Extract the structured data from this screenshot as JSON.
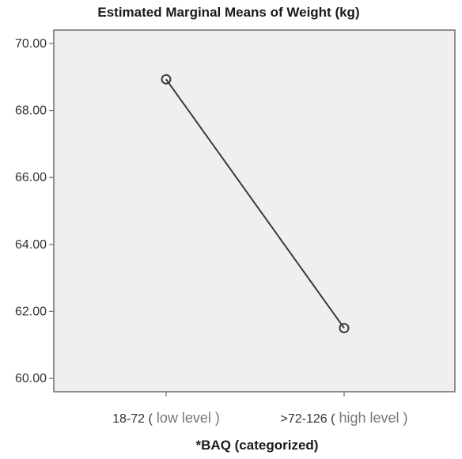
{
  "chart_data": {
    "type": "line",
    "title": "Estimated Marginal Means of Weight (kg)",
    "xlabel": "*BAQ (categorized)",
    "ylabel": "",
    "categories": [
      {
        "main": "18-72 (",
        "paren": " low level   )"
      },
      {
        "main": ">72-126 (",
        "paren": " high level   )"
      }
    ],
    "values": [
      68.93,
      61.5
    ],
    "ylim": [
      59.6,
      70.4
    ],
    "yticks": [
      "60.00",
      "62.00",
      "64.00",
      "66.00",
      "68.00",
      "70.00"
    ],
    "ytick_values": [
      60,
      62,
      64,
      66,
      68,
      70
    ],
    "grid": false,
    "legend": "none",
    "colors": {
      "plot_background": "#efefef",
      "line": "#3a3a3a",
      "marker": "#3a3a3a",
      "frame": "#6e6e6e"
    }
  }
}
